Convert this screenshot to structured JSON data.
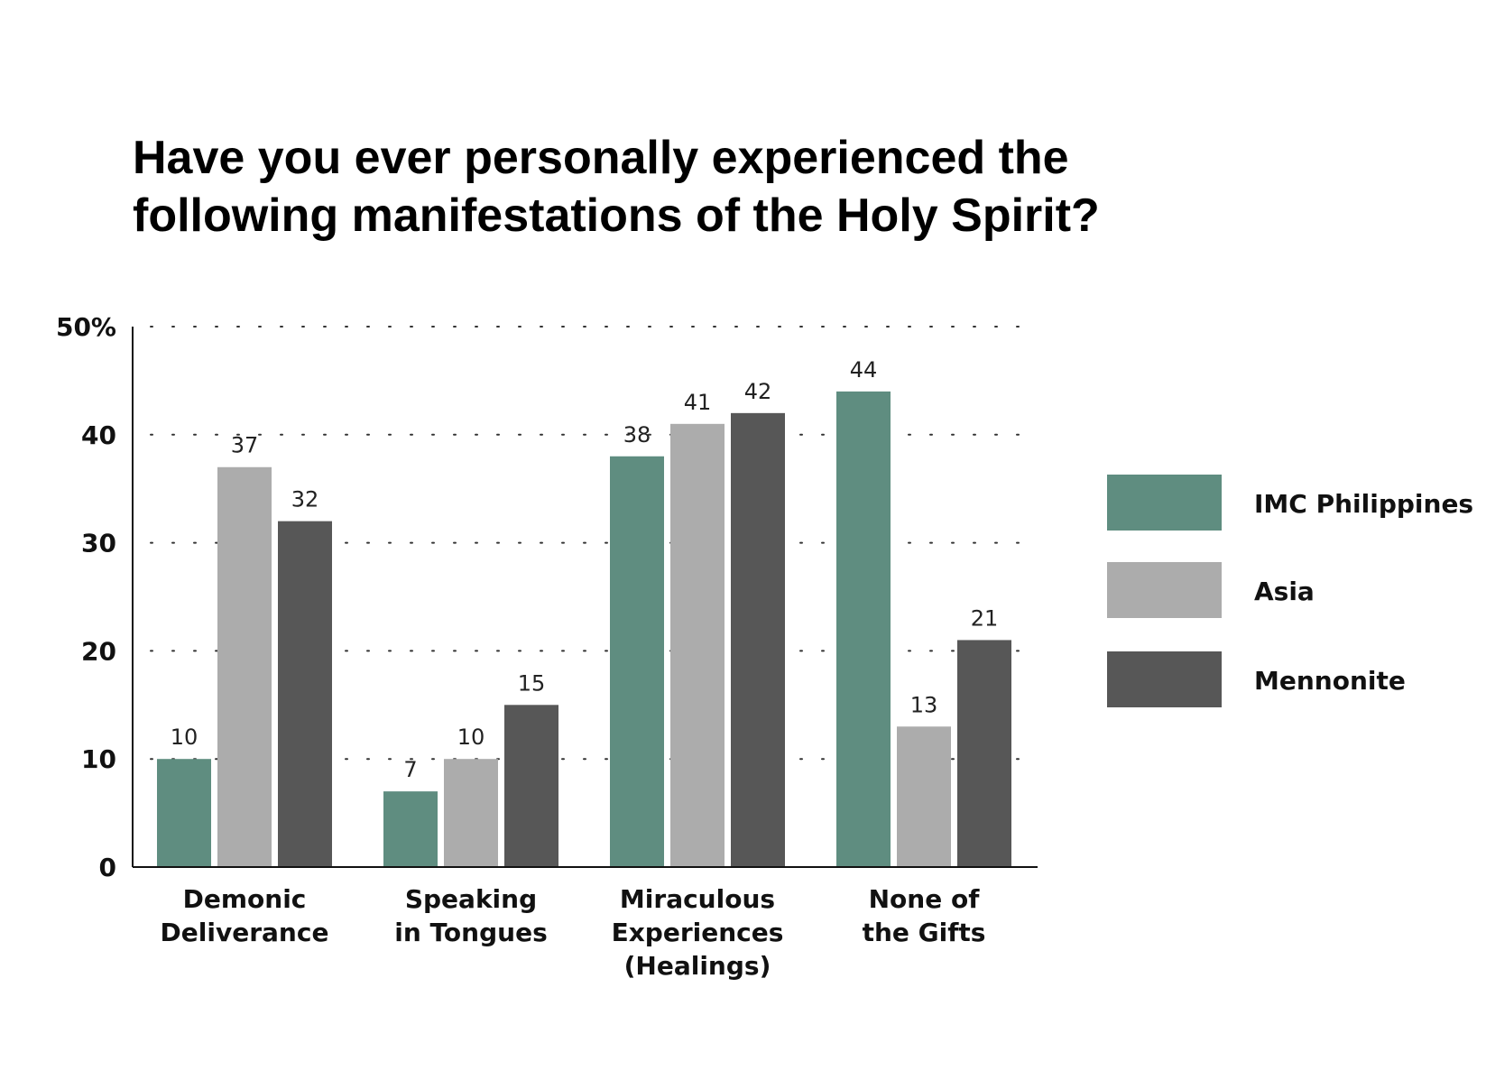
{
  "chart_data": {
    "type": "bar",
    "title": "Have you ever personally experienced the following manifestations of the Holy Spirit?",
    "title_lines": [
      "Have you ever personally experienced the",
      "following manifestations of the Holy Spirit?"
    ],
    "categories": [
      "Demonic Deliverance",
      "Speaking in Tongues",
      "Miraculous Experiences (Healings)",
      "None of the Gifts"
    ],
    "category_lines": [
      [
        "Demonic",
        "Deliverance"
      ],
      [
        "Speaking",
        "in Tongues"
      ],
      [
        "Miraculous",
        "Experiences",
        "(Healings)"
      ],
      [
        "None of",
        "the Gifts"
      ]
    ],
    "series": [
      {
        "name": "IMC Philippines",
        "color": "#5f8d80",
        "values": [
          10,
          7,
          38,
          44
        ]
      },
      {
        "name": "Asia",
        "color": "#acacac",
        "values": [
          37,
          10,
          41,
          13
        ]
      },
      {
        "name": "Mennonite",
        "color": "#575757",
        "values": [
          32,
          15,
          42,
          21
        ]
      }
    ],
    "yticks": [
      "0",
      "10",
      "20",
      "30",
      "40",
      "50%"
    ],
    "ylim": [
      0,
      50
    ],
    "grid": "dotted horizontal",
    "data_labels": true,
    "legend_position": "right"
  }
}
